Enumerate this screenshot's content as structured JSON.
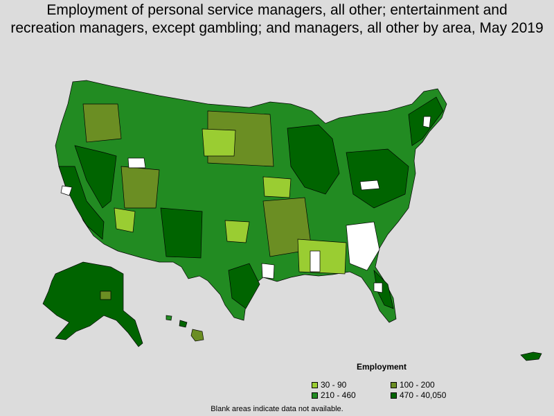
{
  "title_line1": "Employment of personal service managers, all other; entertainment and",
  "title_line2": "recreation managers, except gambling; and managers, all other by area, May 2019",
  "legend": {
    "title": "Employment",
    "items": [
      {
        "label": "30 - 90",
        "color": "#9acd32"
      },
      {
        "label": "100 - 200",
        "color": "#6b8e23"
      },
      {
        "label": "210 - 460",
        "color": "#228b22"
      },
      {
        "label": "470 - 40,050",
        "color": "#006400"
      }
    ]
  },
  "footnote": "Blank areas indicate data not available."
}
